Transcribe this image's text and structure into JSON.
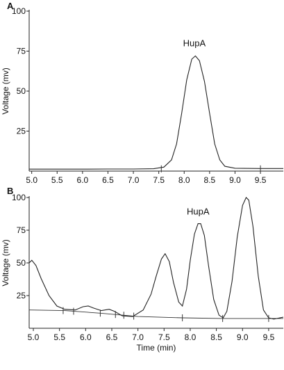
{
  "chart_data": [
    {
      "panel": "A",
      "type": "line",
      "title": "",
      "xlabel": "",
      "ylabel": "Voltage (mv)",
      "xlim": [
        4.95,
        9.95
      ],
      "ylim": [
        0,
        100
      ],
      "x_ticks": [
        5.0,
        5.5,
        6.0,
        6.5,
        7.0,
        7.5,
        8.0,
        8.5,
        9.0,
        9.5
      ],
      "y_ticks": [
        25,
        50,
        75,
        100
      ],
      "grid": false,
      "annotations": [
        {
          "text": "HupA",
          "x": 8.2,
          "y": 78
        }
      ],
      "series": [
        {
          "x": [
            4.95,
            5.5,
            6.0,
            6.5,
            7.0,
            7.4,
            7.6,
            7.75,
            7.85,
            7.95,
            8.05,
            8.15,
            8.22,
            8.3,
            8.4,
            8.5,
            8.6,
            8.7,
            8.8,
            9.0,
            9.5,
            9.95
          ],
          "y": [
            1.2,
            1.2,
            1.2,
            1.3,
            1.3,
            1.5,
            2.5,
            7,
            17,
            36,
            57,
            70,
            72,
            69,
            56,
            36,
            17,
            7,
            3,
            1.8,
            1.6,
            1.6
          ]
        }
      ],
      "peak_markers_x": [
        7.55,
        9.5
      ]
    },
    {
      "panel": "B",
      "type": "line",
      "title": "",
      "xlabel": "Time (min)",
      "ylabel": "Voltage (mv)",
      "xlim": [
        4.92,
        9.78
      ],
      "ylim": [
        0,
        100
      ],
      "x_ticks": [
        5.0,
        5.5,
        6.0,
        6.5,
        7.0,
        7.5,
        8.0,
        8.5,
        9.0,
        9.5
      ],
      "y_ticks": [
        25,
        50,
        75,
        100
      ],
      "grid": false,
      "annotations": [
        {
          "text": "HupA",
          "x": 8.15,
          "y": 87
        }
      ],
      "series": [
        {
          "x": [
            4.92,
            4.97,
            5.05,
            5.15,
            5.3,
            5.45,
            5.6,
            5.8,
            5.95,
            6.05,
            6.15,
            6.3,
            6.45,
            6.55,
            6.7,
            6.9,
            7.1,
            7.25,
            7.35,
            7.45,
            7.52,
            7.6,
            7.68,
            7.78,
            7.85,
            7.93,
            8.0,
            8.08,
            8.15,
            8.2,
            8.27,
            8.35,
            8.45,
            8.55,
            8.63,
            8.7,
            8.8,
            8.9,
            9.0,
            9.07,
            9.12,
            9.2,
            9.3,
            9.4,
            9.5,
            9.6,
            9.78
          ],
          "y": [
            50,
            52,
            48,
            38,
            25,
            17,
            14.5,
            14,
            16.5,
            17,
            15.5,
            13.5,
            14.5,
            13,
            9.5,
            9,
            14,
            26,
            40,
            53,
            57,
            51,
            35,
            20,
            17,
            30,
            52,
            72,
            80,
            80,
            71,
            48,
            22,
            10,
            8,
            13,
            36,
            70,
            94,
            100,
            98,
            78,
            40,
            14,
            8,
            7,
            8.5
          ]
        }
      ],
      "baseline": {
        "x": [
          4.92,
          5.6,
          6.3,
          7.0,
          7.85,
          8.6,
          9.3,
          9.78
        ],
        "y": [
          14,
          13.5,
          11.5,
          9,
          8,
          7.5,
          7.5,
          7.5
        ]
      },
      "peak_markers_x": [
        5.57,
        5.77,
        6.28,
        6.57,
        6.73,
        6.92,
        7.85,
        8.62,
        9.5
      ]
    }
  ],
  "panel_labels": [
    "A",
    "B"
  ],
  "series_labels": [
    "HupA",
    "HupA"
  ]
}
